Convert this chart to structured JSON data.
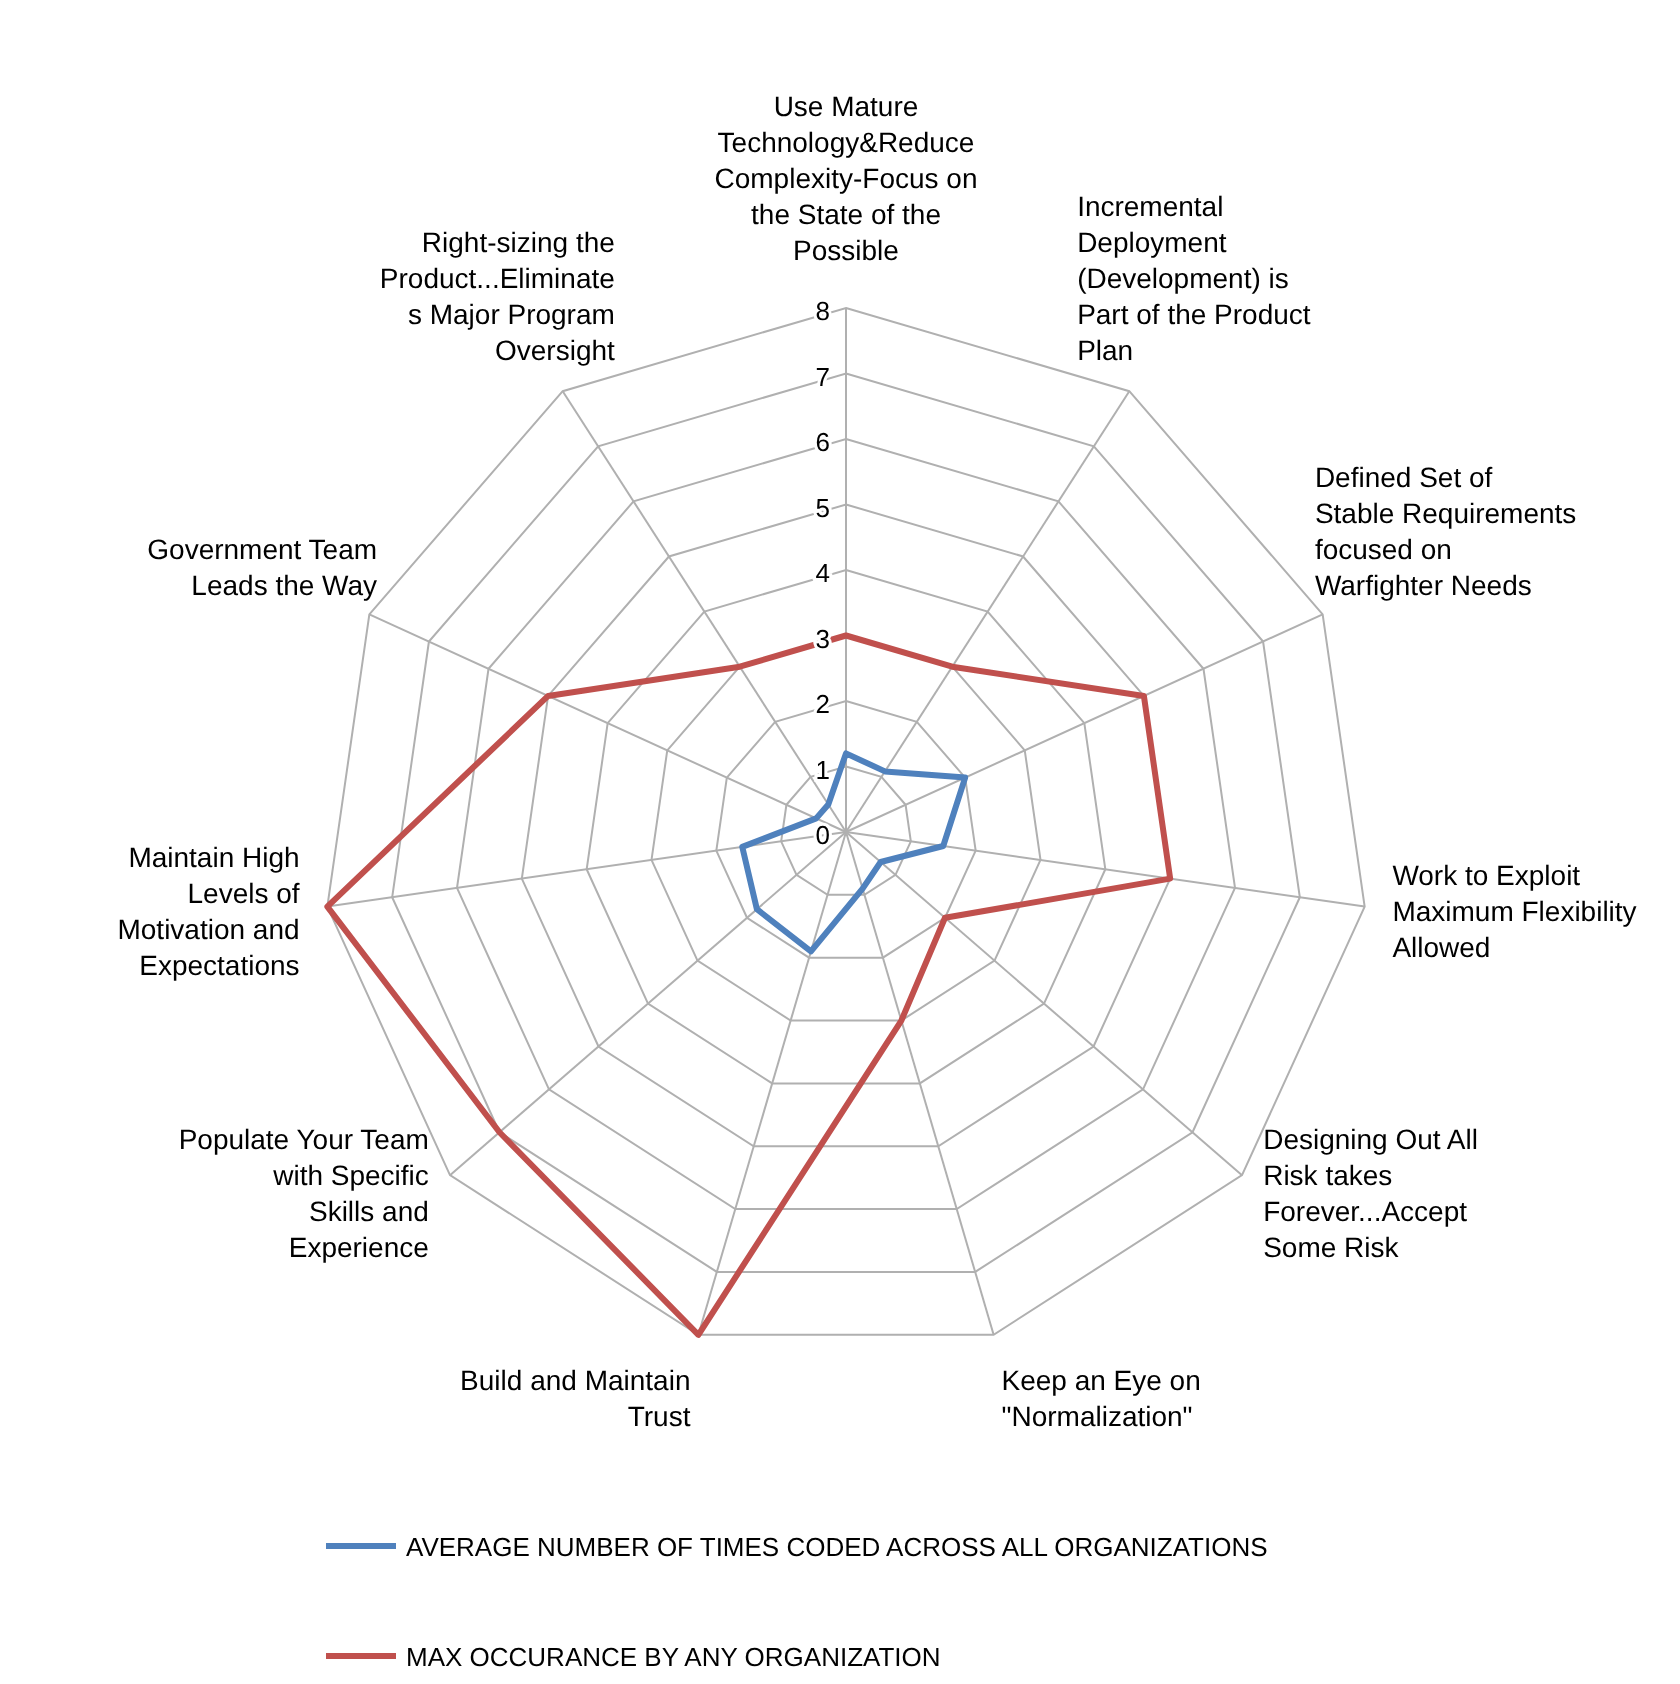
{
  "chart_data": {
    "type": "radar",
    "categories": [
      "Use Mature Technology&Reduce Complexity-Focus on the State of the Possible",
      "Incremental Deployment (Development) is Part of the Product Plan",
      "Defined Set of Stable Requirements focused on Warfighter Needs",
      "Work to Exploit Maximum Flexibility Allowed",
      "Designing Out All Risk takes Forever...Accept Some Risk",
      "Keep an Eye on \"Normalization\"",
      "Build and Maintain Trust",
      "Populate Your Team with Specific Skills and Experience",
      "Maintain High Levels of Motivation and Expectations",
      "Government Team Leads the Way",
      "Right-sizing the Product...Eliminates Major Program Oversight"
    ],
    "series": [
      {
        "name": "AVERAGE NUMBER OF TIMES CODED ACROSS ALL ORGANIZATIONS",
        "color": "#4f81bd",
        "values": [
          1.2,
          1.1,
          2,
          1.5,
          0.7,
          0.9,
          1.9,
          1.8,
          1.6,
          0.5,
          0.5
        ]
      },
      {
        "name": "MAX OCCURANCE BY ANY ORGANIZATION",
        "color": "#c0504d",
        "values": [
          3,
          3,
          5,
          5,
          2,
          3,
          8,
          7,
          8,
          5,
          3
        ]
      }
    ],
    "ylim": [
      0,
      8
    ],
    "yticks": [
      0,
      1,
      2,
      3,
      4,
      5,
      6,
      7,
      8
    ],
    "grid": true,
    "legend": "bottom"
  }
}
